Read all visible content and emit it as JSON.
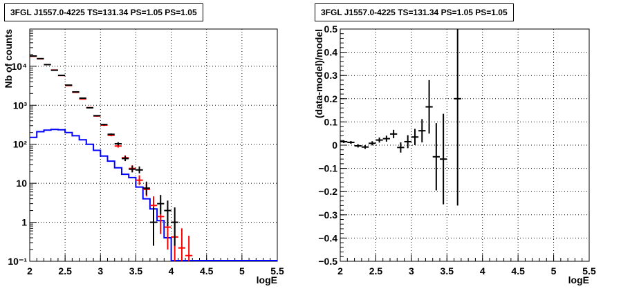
{
  "chart_data": [
    {
      "type": "histogram",
      "title": "3FGL J1557.0-4225 TS=131.34 PS=1.05 PS=1.05",
      "xlabel": "logE",
      "ylabel": "Nb of counts",
      "xlim": [
        2,
        5.5
      ],
      "ylim": [
        0.1,
        90000
      ],
      "yscale": "log",
      "grid": true,
      "xticks": [
        "2",
        "2.5",
        "3",
        "3.5",
        "4",
        "4.5",
        "5",
        "5.5"
      ],
      "yticks": [
        {
          "v": 0.1,
          "label": "10⁻¹"
        },
        {
          "v": 1,
          "label": "1"
        },
        {
          "v": 10,
          "label": "10"
        },
        {
          "v": 100,
          "label": "10²"
        },
        {
          "v": 1000,
          "label": "10³"
        },
        {
          "v": 10000,
          "label": "10⁴"
        }
      ],
      "bin_edges": [
        2.0,
        2.1,
        2.2,
        2.3,
        2.4,
        2.5,
        2.6,
        2.7,
        2.8,
        2.9,
        3.0,
        3.1,
        3.2,
        3.3,
        3.4,
        3.5,
        3.6,
        3.7,
        3.8,
        3.9,
        4.0,
        4.1,
        4.2,
        4.3,
        4.4,
        4.5,
        4.6,
        4.7,
        4.8,
        4.9,
        5.0,
        5.1,
        5.2,
        5.3,
        5.4,
        5.5
      ],
      "series": [
        {
          "name": "",
          "style": "step",
          "color": "#0000ff",
          "values": [
            150,
            210,
            230,
            240,
            235,
            200,
            165,
            130,
            100,
            70,
            50,
            37,
            25,
            17,
            14,
            8,
            4,
            2.2,
            1.1,
            0.4,
            0.1,
            0.1,
            0.1,
            0.1,
            0.1,
            0.1,
            0.1,
            0.1,
            0.1,
            0.1,
            0.1,
            0.1,
            0.1,
            0.1,
            0.1
          ]
        },
        {
          "name": "",
          "style": "errorbar",
          "color": "#ff0000",
          "points": [
            {
              "x": 2.05,
              "y": 18000,
              "elo": 17700,
              "ehi": 18300
            },
            {
              "x": 2.15,
              "y": 15500,
              "elo": 15200,
              "ehi": 15800
            },
            {
              "x": 2.25,
              "y": 11000,
              "elo": 10800,
              "ehi": 11200
            },
            {
              "x": 2.35,
              "y": 8000,
              "elo": 7850,
              "ehi": 8150
            },
            {
              "x": 2.45,
              "y": 5800,
              "elo": 5700,
              "ehi": 5900
            },
            {
              "x": 2.55,
              "y": 3200,
              "elo": 3140,
              "ehi": 3260
            },
            {
              "x": 2.65,
              "y": 2150,
              "elo": 2100,
              "ehi": 2200
            },
            {
              "x": 2.75,
              "y": 1450,
              "elo": 1410,
              "ehi": 1490
            },
            {
              "x": 2.85,
              "y": 870,
              "elo": 840,
              "ehi": 900
            },
            {
              "x": 2.95,
              "y": 530,
              "elo": 510,
              "ehi": 550
            },
            {
              "x": 3.05,
              "y": 310,
              "elo": 295,
              "ehi": 325
            },
            {
              "x": 3.15,
              "y": 170,
              "elo": 160,
              "ehi": 180
            },
            {
              "x": 3.25,
              "y": 90,
              "elo": 82,
              "ehi": 99
            },
            {
              "x": 3.35,
              "y": 45,
              "elo": 39,
              "ehi": 52
            },
            {
              "x": 3.45,
              "y": 24,
              "elo": 20,
              "ehi": 29
            },
            {
              "x": 3.55,
              "y": 12,
              "elo": 9,
              "ehi": 16
            },
            {
              "x": 3.65,
              "y": 7,
              "elo": 4.6,
              "ehi": 10
            },
            {
              "x": 3.75,
              "y": 2.7,
              "elo": 1.4,
              "ehi": 4.6
            },
            {
              "x": 3.85,
              "y": 1.4,
              "elo": 0.5,
              "ehi": 2.8
            },
            {
              "x": 3.95,
              "y": 0.75,
              "elo": 0.2,
              "ehi": 1.8
            },
            {
              "x": 4.05,
              "y": 0.42,
              "elo": 0.1,
              "ehi": 1.1
            },
            {
              "x": 4.15,
              "y": 0.22,
              "elo": 0.1,
              "ehi": 0.7
            },
            {
              "x": 4.25,
              "y": 0.14,
              "elo": 0.1,
              "ehi": 0.45
            }
          ]
        },
        {
          "name": "",
          "style": "errorbar",
          "color": "#000000",
          "points": [
            {
              "x": 2.05,
              "y": 18300,
              "elo": 17960,
              "ehi": 18640
            },
            {
              "x": 2.15,
              "y": 15700,
              "elo": 15400,
              "ehi": 16000
            },
            {
              "x": 2.25,
              "y": 11000,
              "elo": 10800,
              "ehi": 11200
            },
            {
              "x": 2.35,
              "y": 7900,
              "elo": 7750,
              "ehi": 8050
            },
            {
              "x": 2.45,
              "y": 5850,
              "elo": 5730,
              "ehi": 5970
            },
            {
              "x": 2.55,
              "y": 3280,
              "elo": 3200,
              "ehi": 3360
            },
            {
              "x": 2.65,
              "y": 2200,
              "elo": 2150,
              "ehi": 2250
            },
            {
              "x": 2.75,
              "y": 1520,
              "elo": 1480,
              "ehi": 1560
            },
            {
              "x": 2.85,
              "y": 860,
              "elo": 830,
              "ehi": 890
            },
            {
              "x": 2.95,
              "y": 540,
              "elo": 520,
              "ehi": 560
            },
            {
              "x": 3.05,
              "y": 320,
              "elo": 305,
              "ehi": 335
            },
            {
              "x": 3.15,
              "y": 180,
              "elo": 170,
              "ehi": 190
            },
            {
              "x": 3.25,
              "y": 103,
              "elo": 93,
              "ehi": 113
            },
            {
              "x": 3.35,
              "y": 43,
              "elo": 37,
              "ehi": 50
            },
            {
              "x": 3.45,
              "y": 23,
              "elo": 19,
              "ehi": 28
            },
            {
              "x": 3.55,
              "y": 22,
              "elo": 18,
              "ehi": 27
            },
            {
              "x": 3.65,
              "y": 7.5,
              "elo": 5,
              "ehi": 11
            },
            {
              "x": 3.75,
              "y": 1,
              "elo": 0.25,
              "ehi": 2.4
            },
            {
              "x": 3.85,
              "y": 3,
              "elo": 1.6,
              "ehi": 5
            },
            {
              "x": 3.95,
              "y": 2,
              "elo": 0.8,
              "ehi": 3.6
            },
            {
              "x": 4.05,
              "y": 1,
              "elo": 0.25,
              "ehi": 2.4
            }
          ]
        }
      ]
    },
    {
      "type": "errorbar",
      "title": "3FGL J1557.0-4225 TS=131.34 PS=1.05 PS=1.05",
      "xlabel": "logE",
      "ylabel": "(data-model)/model",
      "xlim": [
        2,
        5.5
      ],
      "ylim": [
        -0.5,
        0.5
      ],
      "grid": true,
      "xticks": [
        "2",
        "2.5",
        "3",
        "3.5",
        "4",
        "4.5",
        "5",
        "5.5"
      ],
      "yticks": [
        "−0.5",
        "−0.4",
        "−0.3",
        "−0.2",
        "−0.1",
        "0",
        "0.1",
        "0.2",
        "0.3",
        "0.4",
        "0.5"
      ],
      "series": [
        {
          "name": "",
          "color": "#000000",
          "points": [
            {
              "x": 2.05,
              "y": 0.015,
              "err": 0.006
            },
            {
              "x": 2.15,
              "y": 0.012,
              "err": 0.006
            },
            {
              "x": 2.25,
              "y": -0.003,
              "err": 0.007
            },
            {
              "x": 2.35,
              "y": -0.008,
              "err": 0.008
            },
            {
              "x": 2.45,
              "y": 0.008,
              "err": 0.009
            },
            {
              "x": 2.55,
              "y": 0.022,
              "err": 0.011
            },
            {
              "x": 2.65,
              "y": 0.028,
              "err": 0.013
            },
            {
              "x": 2.75,
              "y": 0.048,
              "err": 0.018
            },
            {
              "x": 2.85,
              "y": -0.01,
              "err": 0.022
            },
            {
              "x": 2.95,
              "y": 0.015,
              "err": 0.028
            },
            {
              "x": 3.05,
              "y": 0.035,
              "err": 0.035
            },
            {
              "x": 3.15,
              "y": 0.062,
              "err": 0.05
            },
            {
              "x": 3.25,
              "y": 0.165,
              "err": 0.115
            },
            {
              "x": 3.35,
              "y": -0.05,
              "err": 0.145
            },
            {
              "x": 3.45,
              "y": -0.06,
              "err": 0.195
            },
            {
              "x": 3.65,
              "y": 0.2,
              "err": 0.46
            }
          ]
        }
      ]
    }
  ]
}
